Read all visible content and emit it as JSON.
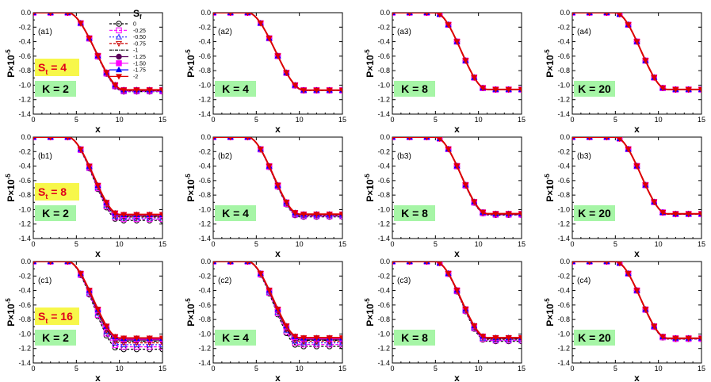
{
  "chart_data": {
    "type": "line",
    "layout": "3x4 grid",
    "xlabel": "x",
    "ylabel_base": "P×10",
    "ylabel_exponent": "-5",
    "xlim": [
      0,
      15
    ],
    "ylim": [
      -1.4,
      0
    ],
    "xticks": [
      "0",
      "5",
      "10",
      "15"
    ],
    "yticks": [
      "0.0",
      "-0.2",
      "-0.4",
      "-0.6",
      "-0.8",
      "-1.0",
      "-1.2",
      "-1.4"
    ],
    "x_markers": [
      0,
      2,
      4,
      5.5,
      6.5,
      7.5,
      8.5,
      9.5,
      10.5,
      12,
      13.5,
      15
    ],
    "legend": {
      "title": "S",
      "title_sub": "f",
      "entries": [
        {
          "label": "0",
          "color": "#000000",
          "marker": "circle-open",
          "dash": "3,2"
        },
        {
          "label": "-0.25",
          "color": "#ff00ff",
          "marker": "square-open",
          "dash": "4,2"
        },
        {
          "label": "-0.50",
          "color": "#3333ff",
          "marker": "triangle-open",
          "dash": "2,2"
        },
        {
          "label": "-0.75",
          "color": "#cc0000",
          "marker": "triangle-down-open",
          "dash": "3,2"
        },
        {
          "label": "-1",
          "color": "#000000",
          "marker": "none",
          "dash": "4,1,1,1"
        },
        {
          "label": "-1.25",
          "color": "#5a005a",
          "marker": "circle-filled",
          "dash": ""
        },
        {
          "label": "-1.50",
          "color": "#ff00ff",
          "marker": "square-filled",
          "dash": ""
        },
        {
          "label": "-1.75",
          "color": "#0000ff",
          "marker": "triangle-filled",
          "dash": ""
        },
        {
          "label": "-2",
          "color": "#dd0000",
          "marker": "triangle-down-filled",
          "dash": ""
        }
      ]
    },
    "panels": [
      {
        "label": "(a1)",
        "K": "K = 2",
        "St": "S",
        "St_sub": "t",
        "St_val": " = 4",
        "drop_start": 4,
        "drop_end": 10.5,
        "plateau": -1.07,
        "spread": 0.015,
        "plateau_min": -1.09
      },
      {
        "label": "(a2)",
        "K": "K = 4",
        "drop_start": 4,
        "drop_end": 10.5,
        "plateau": -1.07,
        "spread": 0.005,
        "plateau_min": -1.075
      },
      {
        "label": "(a3)",
        "K": "K = 8",
        "drop_start": 5,
        "drop_end": 11,
        "plateau": -1.06,
        "spread": 0.003,
        "plateau_min": -1.063
      },
      {
        "label": "(a4)",
        "K": "K = 20",
        "drop_start": 5,
        "drop_end": 11,
        "plateau": -1.06,
        "spread": 0.002,
        "plateau_min": -1.062
      },
      {
        "label": "(b1)",
        "K": "K = 2",
        "St": "S",
        "St_sub": "t",
        "St_val": " = 8",
        "drop_start": 4,
        "drop_end": 10,
        "plateau": -1.08,
        "spread": 0.04,
        "plateau_min": -1.15
      },
      {
        "label": "(b2)",
        "K": "K = 4",
        "drop_start": 4,
        "drop_end": 10,
        "plateau": -1.07,
        "spread": 0.02,
        "plateau_min": -1.1
      },
      {
        "label": "(b3)",
        "K": "K = 8",
        "drop_start": 5,
        "drop_end": 11,
        "plateau": -1.06,
        "spread": 0.01,
        "plateau_min": -1.075
      },
      {
        "label": "(b3)",
        "K": "K = 20",
        "drop_start": 5,
        "drop_end": 11,
        "plateau": -1.06,
        "spread": 0.004,
        "plateau_min": -1.065
      },
      {
        "label": "(c1)",
        "K": "K = 2",
        "St": "S",
        "St_sub": "t",
        "St_val": " = 16",
        "drop_start": 4,
        "drop_end": 10,
        "plateau": -1.08,
        "spread": 0.08,
        "plateau_min": -1.21
      },
      {
        "label": "(c2)",
        "K": "K = 4",
        "drop_start": 4,
        "drop_end": 10,
        "plateau": -1.07,
        "spread": 0.06,
        "plateau_min": -1.17
      },
      {
        "label": "(c3)",
        "K": "K = 8",
        "drop_start": 5,
        "drop_end": 11,
        "plateau": -1.06,
        "spread": 0.03,
        "plateau_min": -1.1
      },
      {
        "label": "(c4)",
        "K": "K = 20",
        "drop_start": 5,
        "drop_end": 11,
        "plateau": -1.06,
        "spread": 0.008,
        "plateau_min": -1.07
      }
    ]
  }
}
